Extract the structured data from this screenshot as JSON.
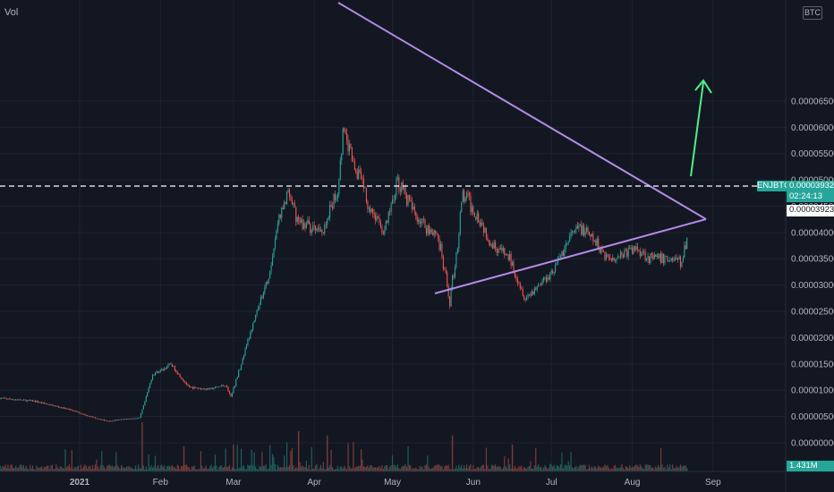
{
  "header": {
    "vol_label": "Vol",
    "currency_label": "BTC"
  },
  "price_axis": {
    "ticks": [
      "0.00006500",
      "0.00006000",
      "0.00005500",
      "0.00005000",
      "0.00004500",
      "0.00004000",
      "0.00003500",
      "0.00003000",
      "0.00002500",
      "0.00002000",
      "0.00001500",
      "0.00001000",
      "0.00000500",
      "0.00000000"
    ],
    "tick_values": [
      6.5e-05,
      6e-05,
      5.5e-05,
      5e-05,
      4.5e-05,
      4e-05,
      3.5e-05,
      3e-05,
      2.5e-05,
      2e-05,
      1.5e-05,
      1e-05,
      5e-06,
      0.0
    ]
  },
  "time_axis": {
    "labels": [
      "2021",
      "Feb",
      "Mar",
      "Apr",
      "May",
      "Jun",
      "Jul",
      "Aug",
      "Sep"
    ],
    "label_days": [
      0,
      31,
      59,
      90,
      120,
      151,
      181,
      212,
      243
    ]
  },
  "tags": {
    "pair": "ENJBTC",
    "last_price": "0.00003932",
    "countdown": "02:24:13",
    "crosshair_price": "0.00003923",
    "volume": "1.431M"
  },
  "colors": {
    "background": "#131722",
    "up": "#26a69a",
    "down": "#ef5350",
    "pattern_line": "#b48ae4",
    "arrow": "#4cf089",
    "grid": "#1f2331"
  },
  "chart_data": {
    "type": "candlestick",
    "symbol": "ENJBTC",
    "x_axis": "time (2021)",
    "y_axis": "price (BTC)",
    "ylim": [
      0,
      6.6e-05
    ],
    "grid": true,
    "close_path": [
      [
        "2020-12-01",
        8.5e-06
      ],
      [
        "2020-12-15",
        7.9e-06
      ],
      [
        "2020-12-29",
        6.2e-06
      ],
      [
        "2021-01-05",
        5e-06
      ],
      [
        "2021-01-12",
        4.1e-06
      ],
      [
        "2021-01-18",
        4.5e-06
      ],
      [
        "2021-01-24",
        4.7e-06
      ],
      [
        "2021-01-26",
        7.8e-06
      ],
      [
        "2021-01-29",
        1.3e-05
      ],
      [
        "2021-02-02",
        1.4e-05
      ],
      [
        "2021-02-05",
        1.5e-05
      ],
      [
        "2021-02-08",
        1.3e-05
      ],
      [
        "2021-02-12",
        1.05e-05
      ],
      [
        "2021-02-20",
        1.02e-05
      ],
      [
        "2021-02-26",
        1.1e-05
      ],
      [
        "2021-02-28",
        8.7e-06
      ],
      [
        "2021-03-04",
        1.5e-05
      ],
      [
        "2021-03-10",
        2.5e-05
      ],
      [
        "2021-03-15",
        3.2e-05
      ],
      [
        "2021-03-18",
        4.2e-05
      ],
      [
        "2021-03-22",
        4.7e-05
      ],
      [
        "2021-03-26",
        4.2e-05
      ],
      [
        "2021-04-04",
        4e-05
      ],
      [
        "2021-04-10",
        4.8e-05
      ],
      [
        "2021-04-12",
        5.9e-05
      ],
      [
        "2021-04-18",
        5.1e-05
      ],
      [
        "2021-04-22",
        4.5e-05
      ],
      [
        "2021-04-28",
        4e-05
      ],
      [
        "2021-05-03",
        5e-05
      ],
      [
        "2021-05-09",
        4.4e-05
      ],
      [
        "2021-05-14",
        4.1e-05
      ],
      [
        "2021-05-18",
        4e-05
      ],
      [
        "2021-05-20",
        3.5e-05
      ],
      [
        "2021-05-23",
        2.7e-05
      ],
      [
        "2021-05-26",
        3.8e-05
      ],
      [
        "2021-05-28",
        4.7e-05
      ],
      [
        "2021-06-03",
        4.3e-05
      ],
      [
        "2021-06-08",
        3.8e-05
      ],
      [
        "2021-06-15",
        3.5e-05
      ],
      [
        "2021-06-19",
        3e-05
      ],
      [
        "2021-06-21",
        2.75e-05
      ],
      [
        "2021-06-25",
        2.95e-05
      ],
      [
        "2021-07-02",
        3.3e-05
      ],
      [
        "2021-07-08",
        3.9e-05
      ],
      [
        "2021-07-12",
        4.1e-05
      ],
      [
        "2021-07-18",
        3.8e-05
      ],
      [
        "2021-07-23",
        3.5e-05
      ],
      [
        "2021-08-03",
        3.7e-05
      ],
      [
        "2021-08-08",
        3.5e-05
      ],
      [
        "2021-08-18",
        3.5e-05
      ],
      [
        "2021-08-20",
        3.4e-05
      ],
      [
        "2021-08-22",
        3.93e-05
      ]
    ],
    "annotations": {
      "pattern": "symmetrical triangle",
      "horizontal_level": 3.932e-05,
      "projection": "upward arrow breakout"
    },
    "volume": {
      "last": "1.431M"
    }
  }
}
